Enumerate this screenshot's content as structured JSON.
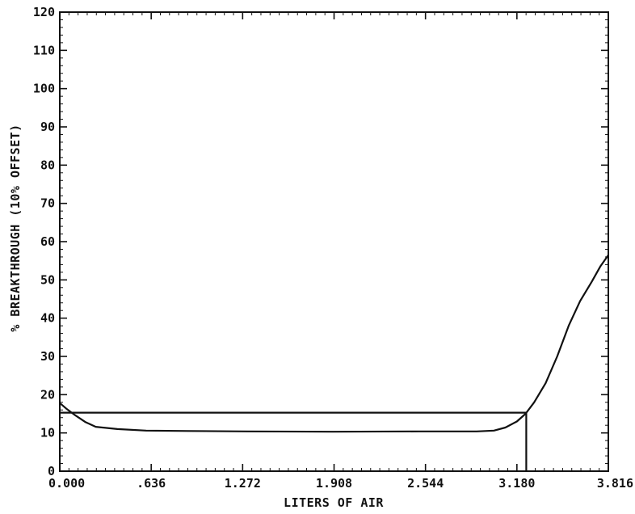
{
  "chart_data": {
    "type": "line",
    "xlabel": "LITERS OF AIR",
    "ylabel": "% BREAKTHROUGH (10% OFFSET)",
    "xlim": [
      0,
      3.816
    ],
    "ylim": [
      0,
      120
    ],
    "x_ticks": [
      "0.000",
      ".636",
      "1.272",
      "1.908",
      "2.544",
      "3.180",
      "3.816"
    ],
    "x_tick_values": [
      0,
      0.636,
      1.272,
      1.908,
      2.544,
      3.18,
      3.816
    ],
    "y_ticks": [
      "0",
      "10",
      "20",
      "30",
      "40",
      "50",
      "60",
      "70",
      "80",
      "90",
      "100",
      "110",
      "120"
    ],
    "y_tick_values": [
      0,
      10,
      20,
      30,
      40,
      50,
      60,
      70,
      80,
      90,
      100,
      110,
      120
    ],
    "series": [
      {
        "values": [
          [
            0.0,
            17.8
          ],
          [
            0.05,
            16.2
          ],
          [
            0.1,
            14.8
          ],
          [
            0.18,
            12.8
          ],
          [
            0.25,
            11.6
          ],
          [
            0.4,
            11.0
          ],
          [
            0.6,
            10.6
          ],
          [
            0.9,
            10.5
          ],
          [
            1.3,
            10.4
          ],
          [
            1.9,
            10.3
          ],
          [
            2.5,
            10.4
          ],
          [
            2.9,
            10.4
          ],
          [
            3.02,
            10.6
          ],
          [
            3.1,
            11.4
          ],
          [
            3.18,
            13.0
          ],
          [
            3.24,
            15.0
          ],
          [
            3.3,
            18.0
          ],
          [
            3.38,
            23.0
          ],
          [
            3.46,
            30.0
          ],
          [
            3.54,
            38.0
          ],
          [
            3.62,
            44.5
          ],
          [
            3.7,
            49.5
          ],
          [
            3.76,
            53.5
          ],
          [
            3.816,
            56.5
          ]
        ]
      },
      {
        "values": [
          [
            0.0,
            15.3
          ],
          [
            3.245,
            15.3
          ],
          [
            3.245,
            0
          ]
        ]
      }
    ],
    "grid": false,
    "colors": {
      "line": "#111111",
      "axis": "#111111"
    }
  }
}
